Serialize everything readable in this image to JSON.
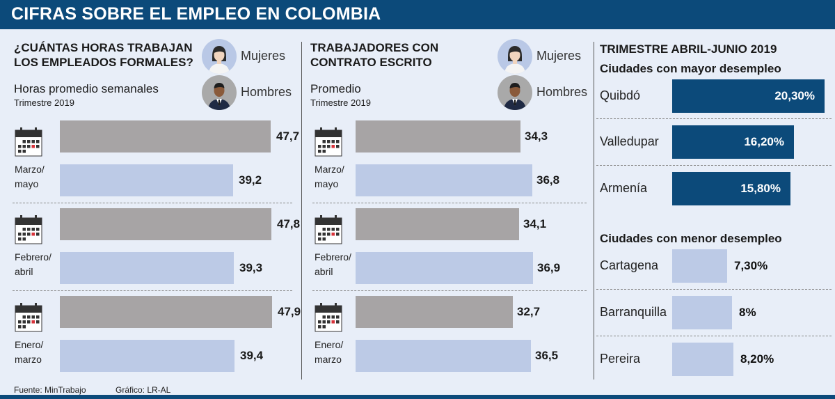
{
  "title": "CIFRAS SOBRE EL EMPLEO EN COLOMBIA",
  "legend": {
    "women": "Mujeres",
    "men": "Hombres"
  },
  "colors": {
    "women": "#bccae6",
    "men": "#a7a4a5",
    "accent": "#0c4a7a"
  },
  "periods": [
    {
      "line1": "Marzo/",
      "line2": "mayo"
    },
    {
      "line1": "Febrero/",
      "line2": "abril"
    },
    {
      "line1": "Enero/",
      "line2": "marzo"
    }
  ],
  "footer": {
    "source": "Fuente: MinTrabajo",
    "credit": "Gráfico: LR-AL"
  },
  "chart_data": [
    {
      "type": "bar",
      "title": "¿CUÁNTAS HORAS TRABAJAN LOS EMPLEADOS FORMALES?",
      "title_line1": "¿CUÁNTAS HORAS TRABAJAN",
      "title_line2": "LOS EMPLEADOS FORMALES?",
      "subtitle": "Horas promedio semanales",
      "subtitle2": "Trimestre 2019",
      "categories": [
        "Marzo/mayo",
        "Febrero/abril",
        "Enero/marzo"
      ],
      "series": [
        {
          "name": "Hombres",
          "values": [
            47.7,
            47.8,
            47.9
          ],
          "labels": [
            "47,7",
            "47,8",
            "47,9"
          ]
        },
        {
          "name": "Mujeres",
          "values": [
            39.2,
            39.3,
            39.4
          ],
          "labels": [
            "39,2",
            "39,3",
            "39,4"
          ]
        }
      ],
      "xlim": [
        0,
        50
      ]
    },
    {
      "type": "bar",
      "title": "TRABAJADORES CON CONTRATO ESCRITO",
      "title_line1": "TRABAJADORES CON",
      "title_line2": "CONTRATO ESCRITO",
      "subtitle": "Promedio",
      "subtitle2": "Trimestre 2019",
      "categories": [
        "Marzo/mayo",
        "Febrero/abril",
        "Enero/marzo"
      ],
      "series": [
        {
          "name": "Hombres",
          "values": [
            34.3,
            34.1,
            32.7
          ],
          "labels": [
            "34,3",
            "34,1",
            "32,7"
          ]
        },
        {
          "name": "Mujeres",
          "values": [
            36.8,
            36.9,
            36.5
          ],
          "labels": [
            "36,8",
            "36,9",
            "36,5"
          ]
        }
      ],
      "xlim": [
        0,
        40
      ]
    },
    {
      "type": "bar",
      "title": "TRIMESTRE ABRIL-JUNIO 2019",
      "groups": [
        {
          "name": "Ciudades con mayor desempleo",
          "categories": [
            "Quibdó",
            "Valledupar",
            "Armenía"
          ],
          "values": [
            20.3,
            16.2,
            15.8
          ],
          "labels": [
            "20,30%",
            "16,20%",
            "15,80%"
          ]
        },
        {
          "name": "Ciudades con menor desempleo",
          "categories": [
            "Cartagena",
            "Barranquilla",
            "Pereira"
          ],
          "values": [
            7.3,
            8,
            8.2
          ],
          "labels": [
            "7,30%",
            "8%",
            "8,20%"
          ]
        }
      ],
      "xlim": [
        0,
        20.3
      ]
    }
  ]
}
